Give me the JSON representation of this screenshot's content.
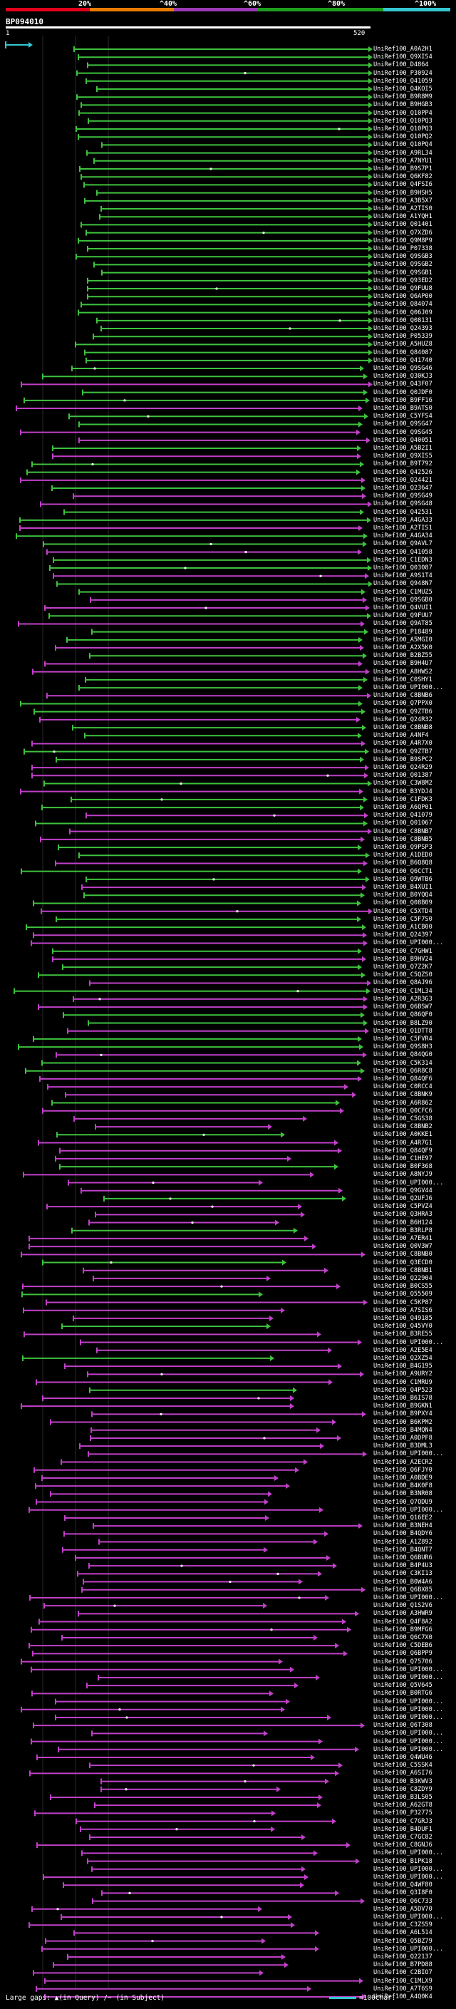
{
  "header": {
    "percent_labels": [
      "20%",
      "^40%",
      "^60%",
      "^80%",
      "^100%"
    ],
    "scale_colors": [
      "#e0001b",
      "#e87a00",
      "#9b39b5",
      "#1e9e1e",
      "#35c7d1"
    ]
  },
  "query": {
    "id": "BP094010",
    "start": "1",
    "end": "520"
  },
  "colors": {
    "query": "#35c7d1",
    "green": "#3ec23e",
    "magenta": "#c040c8",
    "tick": "#ffffff"
  },
  "legend": {
    "label": "Large gaps:",
    "in_query": "(in Query)",
    "in_subject": "/~ (in Subject)",
    "scale_text": "=100char."
  },
  "hits": [
    "UniRef100_A0A2H1",
    "UniRef100_Q9XIS4",
    "UniRef100_D4864",
    "UniRef100_P30924",
    "UniRef100_Q41059",
    "UniRef100_Q4KOI5",
    "UniRef100_B9R8M9",
    "UniRef100_B9HGB3",
    "UniRef100_Q10PP4",
    "UniRef100_Q10PQ3",
    "UniRef100_Q10PQ3",
    "UniRef100_Q10PQ2",
    "UniRef100_Q10PQ4",
    "UniRef100_A9RL34",
    "UniRef100_A7NYU1",
    "UniRef100_B9S7P1",
    "UniRef100_Q6KF82",
    "UniRef100_Q4FSI6",
    "UniRef100_B9HSH5",
    "UniRef100_A3B5X7",
    "UniRef100_A2TIS0",
    "UniRef100_A1YQH1",
    "UniRef100_Q01401",
    "UniRef100_Q7XZD6",
    "UniRef100_Q9M8P9",
    "UniRef100_P07338",
    "UniRef100_Q9SGB3",
    "UniRef100_Q9SGB2",
    "UniRef100_Q9SGB1",
    "UniRef100_Q93ED2",
    "UniRef100_Q9FUU8",
    "UniRef100_Q6AP00",
    "UniRef100_Q84074",
    "UniRef100_Q06J09",
    "UniRef100_Q08131",
    "UniRef100_Q24393",
    "UniRef100_P05339",
    "UniRef100_A5HUZ8",
    "UniRef100_Q84087",
    "UniRef100_Q41740",
    "UniRef100_Q9SG46",
    "UniRef100_Q30KJ3",
    "UniRef100_Q43F07",
    "UniRef100_Q0JDF0",
    "UniRef100_B9FF16",
    "UniRef100_B9ATS0",
    "UniRef100_C5YFS4",
    "UniRef100_Q9SG47",
    "UniRef100_Q9SG45",
    "UniRef100_Q40051",
    "UniRef100_A5B2I1",
    "UniRef100_Q9XIS5",
    "UniRef100_B9T792",
    "UniRef100_Q42526",
    "UniRef100_Q24421",
    "UniRef100_Q23647",
    "UniRef100_Q9SG49",
    "UniRef100_Q9SG48",
    "UniRef100_Q42531",
    "UniRef100_A4GA33",
    "UniRef100_A2TIS1",
    "UniRef100_A4GA34",
    "UniRef100_Q9AVL7",
    "UniRef100_Q41058",
    "UniRef100_C1EDN3",
    "UniRef100_Q03087",
    "UniRef100_A9S1T4",
    "UniRef100_Q948N7",
    "UniRef100_C1MUZ5",
    "UniRef100_Q9SGB0",
    "UniRef100_Q4VUI1",
    "UniRef100_Q9FUU7",
    "UniRef100_Q9AT85",
    "UniRef100_P18489",
    "UniRef100_A5MGI0",
    "UniRef100_A2X5K0",
    "UniRef100_B2BZ55",
    "UniRef100_B9H4U7",
    "UniRef100_A8HWS2",
    "UniRef100_C0SHY1",
    "UniRef100_UPI000...",
    "UniRef100_C8BNB6",
    "UniRef100_Q7PPX0",
    "UniRef100_Q9ZTB6",
    "UniRef100_Q24R32",
    "UniRef100_C8BNB8",
    "UniRef100_A4NF4",
    "UniRef100_A4R7X0",
    "UniRef100_Q9ZTB7",
    "UniRef100_B9SPC2",
    "UniRef100_Q24R29",
    "UniRef100_Q01387",
    "UniRef100_C3W8M2",
    "UniRef100_B3YDJ4",
    "UniRef100_C1FDK3",
    "UniRef100_A6QP01",
    "UniRef100_Q41079",
    "UniRef100_Q01067",
    "UniRef100_C8BNB7",
    "UniRef100_C8BNB5",
    "UniRef100_Q9PSP3",
    "UniRef100_A1DED0",
    "UniRef100_B6Q8Q8",
    "UniRef100_Q6CCT1",
    "UniRef100_Q9WTB6",
    "UniRef100_B4XUI1",
    "UniRef100_B0YQQ4",
    "UniRef100_Q08B09",
    "UniRef100_C5XTD4",
    "UniRef100_C5F7S0",
    "UniRef100_A1CB00",
    "UniRef100_Q24397",
    "UniRef100_UPI000...",
    "UniRef100_C7GHW1",
    "UniRef100_B9HV24",
    "UniRef100_Q7Z2K7",
    "UniRef100_C5QZS0",
    "UniRef100_Q8AJ96",
    "UniRef100_C1ML34",
    "UniRef100_A2R3G3",
    "UniRef100_Q6BSW7",
    "UniRef100_Q86QF0",
    "UniRef100_B8LZ90",
    "UniRef100_Q1DTT8",
    "UniRef100_C5FVR4",
    "UniRef100_Q9S8H3",
    "UniRef100_Q84QG0",
    "UniRef100_C5K314",
    "UniRef100_Q6R8C8",
    "UniRef100_Q84QF6",
    "UniRef100_C0RCC4",
    "UniRef100_C8BNK9",
    "UniRef100_A6R862",
    "UniRef100_Q0CFC6",
    "UniRef100_C5GS38",
    "UniRef100_C8BNB2",
    "UniRef100_A0KKE1",
    "UniRef100_A4R7G1",
    "UniRef100_Q84QF9",
    "UniRef100_C1HE97",
    "UniRef100_B0F368",
    "UniRef100_A8NYJ9",
    "UniRef100_UPI000...",
    "UniRef100_Q9GV44",
    "UniRef100_Q2UFJ6",
    "UniRef100_C5PVZ4",
    "UniRef100_Q3HRA3",
    "UniRef100_B6H124",
    "UniRef100_B3RLP8",
    "UniRef100_A7ER41",
    "UniRef100_Q0V3W7",
    "UniRef100_C8BNB0",
    "UniRef100_Q3ECD0",
    "UniRef100_C8BNB1",
    "UniRef100_Q22904",
    "UniRef100_B0CS55",
    "UniRef100_Q55509",
    "UniRef100_C5KP87",
    "UniRef100_A7SIS6",
    "UniRef100_Q49185",
    "UniRef100_Q45VY0",
    "UniRef100_B3RE55",
    "UniRef100_UPI000...",
    "UniRef100_A2E5E4",
    "UniRef100_Q2XZ54",
    "UniRef100_B4G195",
    "UniRef100_A9URY2",
    "UniRef100_C1MRU9",
    "UniRef100_Q4P523",
    "UniRef100_B6IS78",
    "UniRef100_B9GKN1",
    "UniRef100_B9PXY4",
    "UniRef100_B6KPM2",
    "UniRef100_B4MQN4",
    "UniRef100_A0DPF8",
    "UniRef100_B3DML3",
    "UniRef100_UPI000...",
    "UniRef100_A2ECR2",
    "UniRef100_Q6FJY0",
    "UniRef100_A0BDE9",
    "UniRef100_B4K0F8",
    "UniRef100_B3NR08",
    "UniRef100_Q7QDU9",
    "UniRef100_UPI000...",
    "UniRef100_Q16EE2",
    "UniRef100_B3NEH4",
    "UniRef100_B4QDY6",
    "UniRef100_A1Z892",
    "UniRef100_B4QNT7",
    "UniRef100_Q6BUR6",
    "UniRef100_B4P4U3",
    "UniRef100_C3KI13",
    "UniRef100_B0W4A6",
    "UniRef100_Q6BX85",
    "UniRef100_UPI000...",
    "UniRef100_Q1S2V6",
    "UniRef100_A3HWR9",
    "UniRef100_Q4F8A2",
    "UniRef100_B9MFG6",
    "UniRef100_Q6C7X0",
    "UniRef100_C5DEB6",
    "UniRef100_Q6BPP9",
    "UniRef100_Q75706",
    "UniRef100_UPI000...",
    "UniRef100_UPI000...",
    "UniRef100_Q5V645",
    "UniRef100_B0RTG6",
    "UniRef100_UPI000...",
    "UniRef100_UPI000...",
    "UniRef100_UPI000...",
    "UniRef100_Q6T308",
    "UniRef100_UPI000...",
    "UniRef100_UPI000...",
    "UniRef100_UPI000...",
    "UniRef100_Q4WU46",
    "UniRef100_C5SSK4",
    "UniRef100_A6SI76",
    "UniRef100_B3KWV3",
    "UniRef100_C8ZDY9",
    "UniRef100_B3LS05",
    "UniRef100_A62GT8",
    "UniRef100_P32775",
    "UniRef100_C7GRJ3",
    "UniRef100_B4DUF1",
    "UniRef100_C7GC82",
    "UniRef100_C8GNJ6",
    "UniRef100_UPI000...",
    "UniRef100_B1PK18",
    "UniRef100_UPI000...",
    "UniRef100_UPI000...",
    "UniRef100_Q4WF80",
    "UniRef100_Q3I8F0",
    "UniRef100_Q6C733",
    "UniRef100_A5DV70",
    "UniRef100_UPI000...",
    "UniRef100_C3ZS59",
    "UniRef100_A6L514",
    "UniRef100_Q5BZ79",
    "UniRef100_UPI000...",
    "UniRef100_Q22137",
    "UniRef100_B7PD88",
    "UniRef100_C2BIO7",
    "UniRef100_C1MLX9",
    "UniRef100_A7T6S9",
    "UniRef100_A4Q0K4"
  ]
}
